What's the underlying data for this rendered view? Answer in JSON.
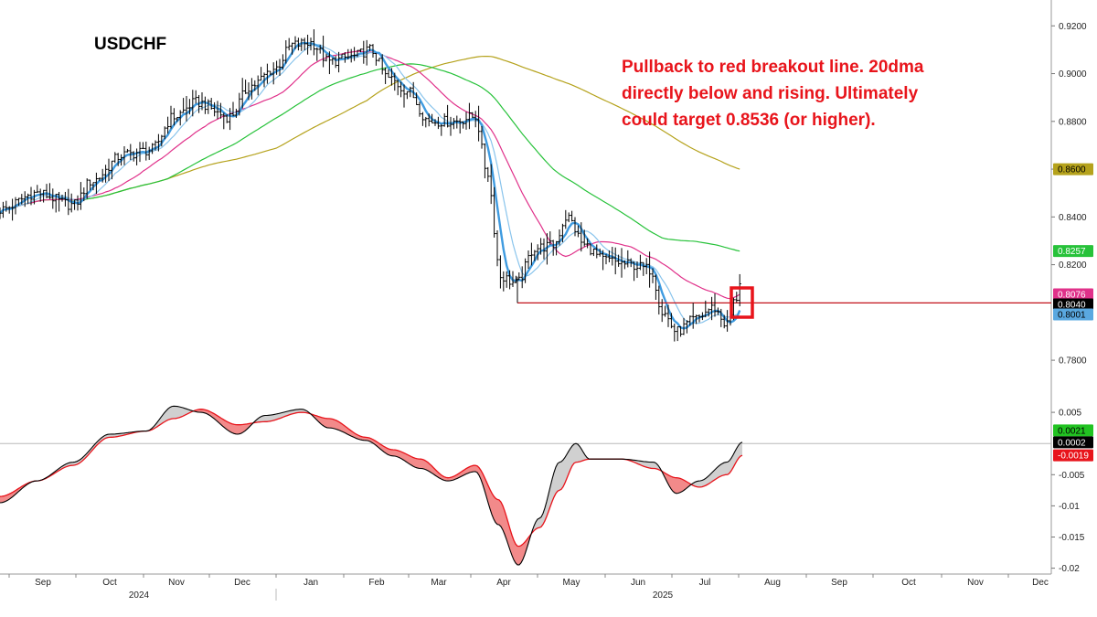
{
  "chart_data": {
    "type": "ohlc",
    "title": "USDCHF",
    "annotation_lines": [
      "Pullback to red breakout line. 20dma",
      "directly below and rising. Ultimately",
      "could target 0.8536 (or higher)."
    ],
    "x_axis": {
      "months": [
        "Sep",
        "Oct",
        "Nov",
        "Dec",
        "Jan",
        "Feb",
        "Mar",
        "Apr",
        "May",
        "Jun",
        "Jul",
        "Aug",
        "Sep",
        "Oct",
        "Nov",
        "Dec"
      ],
      "years": [
        "2024",
        "2025"
      ]
    },
    "price_panel": {
      "ylim": [
        0.772,
        0.927
      ],
      "ticks": [
        "0.9200",
        "0.9000",
        "0.8800",
        "0.8600",
        "0.8400",
        "0.8200",
        "0.7800"
      ],
      "horizontal_breakout_line": 0.804,
      "breakout_line_start": "2025-04",
      "last_values": [
        {
          "label": "0.8600",
          "value": 0.86,
          "color": "#b5a21c",
          "text_color": "#000000",
          "series": "200dma"
        },
        {
          "label": "0.8257",
          "value": 0.8257,
          "color": "#27c23a",
          "text_color": "#ffffff",
          "series": "100dma"
        },
        {
          "label": "0.8076",
          "value": 0.8076,
          "color": "#e0318a",
          "text_color": "#ffffff",
          "series": "50dma"
        },
        {
          "label": "0.8040",
          "value": 0.804,
          "color": "#000000",
          "text_color": "#ffffff",
          "series": "close"
        },
        {
          "label": "0.8001",
          "value": 0.8001,
          "color": "#5aa8e0",
          "text_color": "#000000",
          "series": "20dma"
        }
      ],
      "anchors": [
        [
          0,
          0.843
        ],
        [
          40,
          0.85
        ],
        [
          80,
          0.845
        ],
        [
          100,
          0.855
        ],
        [
          135,
          0.866
        ],
        [
          165,
          0.868
        ],
        [
          190,
          0.882
        ],
        [
          215,
          0.888
        ],
        [
          250,
          0.882
        ],
        [
          275,
          0.895
        ],
        [
          300,
          0.902
        ],
        [
          320,
          0.912
        ],
        [
          340,
          0.913
        ],
        [
          360,
          0.905
        ],
        [
          385,
          0.907
        ],
        [
          405,
          0.91
        ],
        [
          425,
          0.898
        ],
        [
          445,
          0.893
        ],
        [
          470,
          0.88
        ],
        [
          495,
          0.88
        ],
        [
          520,
          0.882
        ],
        [
          532,
          0.86
        ],
        [
          548,
          0.815
        ],
        [
          565,
          0.812
        ],
        [
          585,
          0.827
        ],
        [
          605,
          0.828
        ],
        [
          620,
          0.84
        ],
        [
          640,
          0.828
        ],
        [
          660,
          0.822
        ],
        [
          690,
          0.82
        ],
        [
          712,
          0.818
        ],
        [
          725,
          0.8
        ],
        [
          740,
          0.792
        ],
        [
          760,
          0.797
        ],
        [
          780,
          0.802
        ],
        [
          795,
          0.795
        ],
        [
          805,
          0.806
        ],
        [
          812,
          0.812
        ]
      ]
    },
    "oscillator_panel": {
      "ylim": [
        -0.0205,
        0.01
      ],
      "ticks": [
        "0.005",
        "-0.005",
        "-0.01",
        "-0.015",
        "-0.02"
      ],
      "zero_line": 0,
      "last_values": [
        {
          "label": "0.0021",
          "value": 0.0021,
          "color": "#22c322",
          "text_color": "#000000"
        },
        {
          "label": "0.0002",
          "value": 0.0002,
          "color": "#000000",
          "text_color": "#ffffff"
        },
        {
          "label": "-0.0019",
          "value": -0.0019,
          "color": "#e8141b",
          "text_color": "#ffffff"
        }
      ],
      "fast_anchors": [
        [
          0,
          -0.0095
        ],
        [
          40,
          -0.006
        ],
        [
          80,
          -0.003
        ],
        [
          120,
          0.0015
        ],
        [
          160,
          0.002
        ],
        [
          190,
          0.006
        ],
        [
          220,
          0.005
        ],
        [
          260,
          0.0015
        ],
        [
          290,
          0.0045
        ],
        [
          330,
          0.0055
        ],
        [
          360,
          0.0025
        ],
        [
          400,
          0.0005
        ],
        [
          430,
          -0.002
        ],
        [
          460,
          -0.004
        ],
        [
          490,
          -0.006
        ],
        [
          520,
          -0.0045
        ],
        [
          545,
          -0.013
        ],
        [
          567,
          -0.0195
        ],
        [
          590,
          -0.012
        ],
        [
          612,
          -0.003
        ],
        [
          630,
          0.0
        ],
        [
          645,
          -0.0025
        ],
        [
          680,
          -0.0025
        ],
        [
          715,
          -0.003
        ],
        [
          740,
          -0.008
        ],
        [
          765,
          -0.006
        ],
        [
          795,
          -0.003
        ],
        [
          812,
          0.0002
        ]
      ],
      "slow_anchors": [
        [
          0,
          -0.0085
        ],
        [
          40,
          -0.006
        ],
        [
          80,
          -0.0035
        ],
        [
          120,
          0.001
        ],
        [
          160,
          0.002
        ],
        [
          190,
          0.004
        ],
        [
          220,
          0.0055
        ],
        [
          260,
          0.003
        ],
        [
          290,
          0.0035
        ],
        [
          330,
          0.005
        ],
        [
          360,
          0.004
        ],
        [
          400,
          0.001
        ],
        [
          430,
          -0.001
        ],
        [
          460,
          -0.0025
        ],
        [
          490,
          -0.0055
        ],
        [
          520,
          -0.0035
        ],
        [
          545,
          -0.009
        ],
        [
          567,
          -0.0165
        ],
        [
          590,
          -0.0135
        ],
        [
          612,
          -0.0075
        ],
        [
          630,
          -0.003
        ],
        [
          645,
          -0.0025
        ],
        [
          680,
          -0.0025
        ],
        [
          715,
          -0.004
        ],
        [
          740,
          -0.0055
        ],
        [
          765,
          -0.007
        ],
        [
          795,
          -0.005
        ],
        [
          812,
          -0.0019
        ]
      ]
    },
    "colors": {
      "price_bars": "#000000",
      "dma20": "#3f9be0",
      "dma20_thin": "#89c4ec",
      "dma50": "#e0318a",
      "dma100": "#27c23a",
      "dma200": "#b5a21c",
      "breakout_line": "#c2121a",
      "highlight_box": "#e8141b",
      "fast_line": "#000000",
      "slow_line": "#e8141b",
      "fill_positive": "#d0d0d0",
      "fill_negative": "#f28a8a"
    }
  }
}
